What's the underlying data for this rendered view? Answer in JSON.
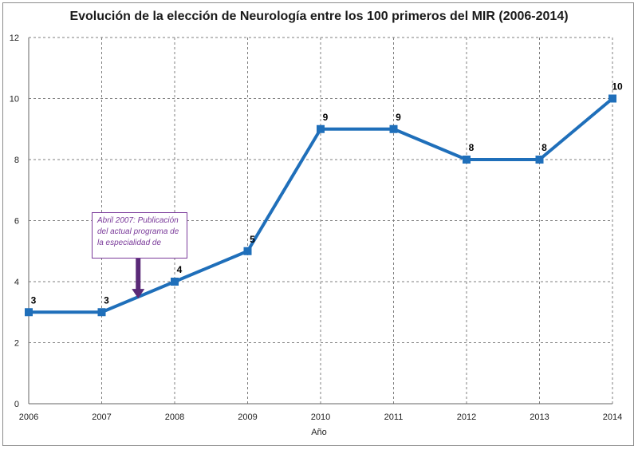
{
  "chart_data": {
    "type": "line",
    "title": "Evolución de la elección de Neurología entre los 100 primeros del MIR (2006-2014)",
    "xlabel": "Año",
    "ylabel": "",
    "x": [
      "2006",
      "2007",
      "2008",
      "2009",
      "2010",
      "2011",
      "2012",
      "2013",
      "2014"
    ],
    "series": [
      {
        "values": [
          3,
          3,
          4,
          5,
          9,
          9,
          8,
          8,
          10
        ]
      }
    ],
    "data_labels": [
      "3",
      "3",
      "4",
      "5",
      "9",
      "9",
      "8",
      "8",
      "10"
    ],
    "ylim": [
      0,
      12
    ],
    "yticks": [
      "0",
      "2",
      "4",
      "6",
      "8",
      "10",
      "12"
    ],
    "grid": true,
    "legend": "none",
    "colors": {
      "line": "#1f6fba",
      "annotation": "#7a3a9a",
      "arrow": "#5a2a78",
      "grid": "#7f7f7f"
    },
    "annotation": {
      "text": "Abril 2007: Publicación del actual programa de la especialidad de",
      "points_to_x": 2007.5
    }
  }
}
